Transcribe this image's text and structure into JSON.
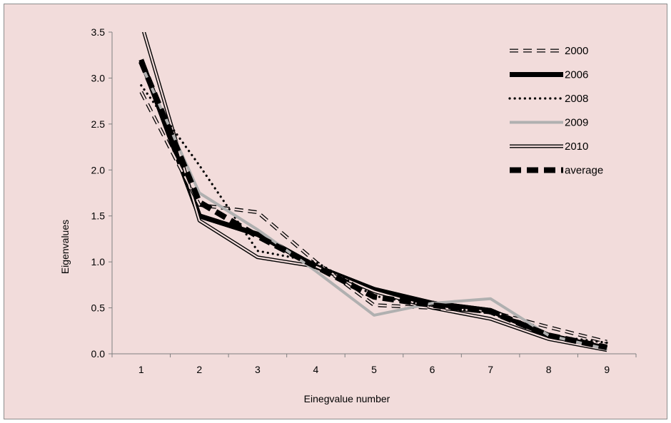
{
  "chart_data": {
    "type": "line",
    "xlabel": "Einegvalue number",
    "ylabel": "Eigenvalues",
    "x": [
      1,
      2,
      3,
      4,
      5,
      6,
      7,
      8,
      9
    ],
    "xlim": [
      0.5,
      9.5
    ],
    "ylim": [
      0,
      3.5
    ],
    "y_ticks": [
      "0.0",
      "0.5",
      "1.0",
      "1.5",
      "2.0",
      "2.5",
      "3.0",
      "3.5"
    ],
    "grid": false,
    "legend_position": "top-right",
    "background_color": "#f2dcdb",
    "series": [
      {
        "name": "2000",
        "style": "double-dashed",
        "color": "#000000",
        "values": [
          2.85,
          1.62,
          1.54,
          1.0,
          0.53,
          0.5,
          0.46,
          0.29,
          0.13
        ]
      },
      {
        "name": "2006",
        "style": "double-solid",
        "color": "#000000",
        "values": [
          3.2,
          1.5,
          1.3,
          0.95,
          0.7,
          0.55,
          0.47,
          0.2,
          0.06
        ]
      },
      {
        "name": "2008",
        "style": "dotted",
        "color": "#000000",
        "values": [
          2.92,
          2.05,
          1.12,
          1.0,
          0.63,
          0.52,
          0.44,
          0.2,
          0.12
        ]
      },
      {
        "name": "2009",
        "style": "solid-gray",
        "color": "#b0b0b0",
        "values": [
          3.15,
          1.75,
          1.35,
          0.9,
          0.42,
          0.55,
          0.6,
          0.2,
          0.05
        ]
      },
      {
        "name": "2010",
        "style": "double-solid-thin",
        "color": "#000000",
        "values": [
          3.6,
          1.45,
          1.05,
          0.95,
          0.68,
          0.5,
          0.38,
          0.16,
          0.04
        ]
      },
      {
        "name": "average",
        "style": "thick-dashed",
        "color": "#000000",
        "values": [
          3.18,
          1.65,
          1.28,
          0.95,
          0.62,
          0.53,
          0.46,
          0.2,
          0.07
        ]
      }
    ]
  }
}
